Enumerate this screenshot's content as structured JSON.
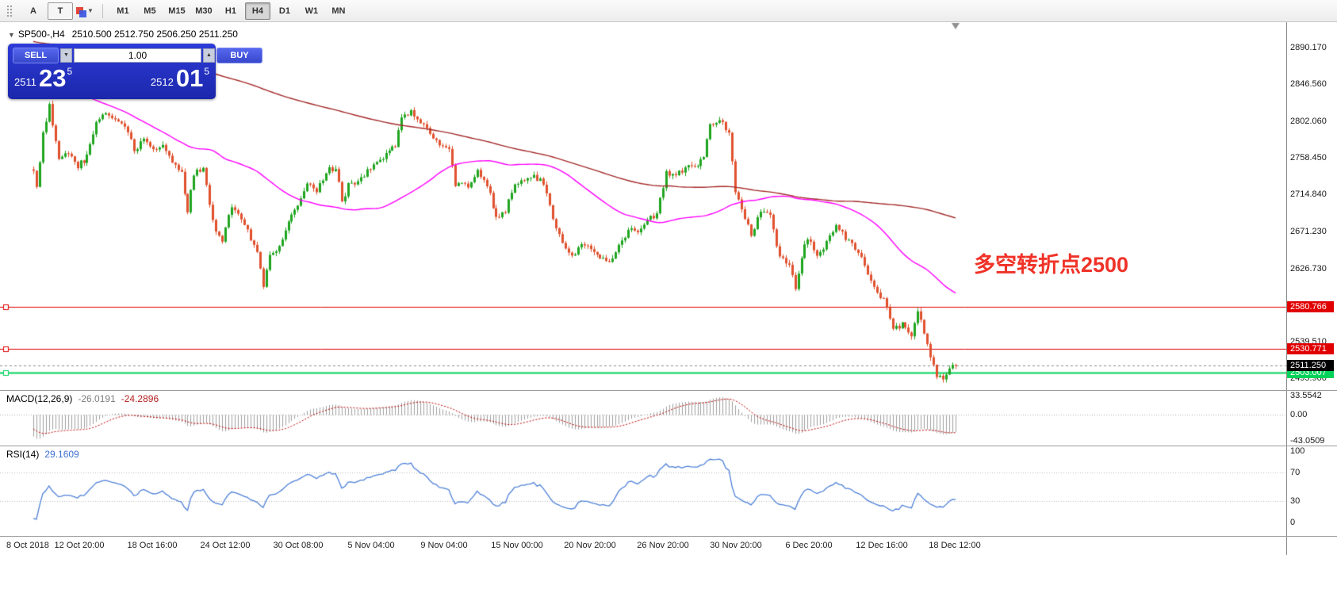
{
  "toolbar": {
    "tools": [
      {
        "name": "move-handle"
      },
      {
        "name": "arrow-tool",
        "glyph": "A"
      },
      {
        "name": "text-tool",
        "glyph": "T"
      },
      {
        "name": "shapes-tool"
      }
    ],
    "timeframes": [
      "M1",
      "M5",
      "M15",
      "M30",
      "H1",
      "H4",
      "D1",
      "W1",
      "MN"
    ],
    "active_timeframe": "H4"
  },
  "chart": {
    "symbol_period": "SP500-,H4",
    "ohlc_text": "2510.500 2512.750 2506.250 2511.250",
    "annotation": "多空转折点2500",
    "annotation_color": "#F03228",
    "time_labels": [
      "8 Oct 2018",
      "12 Oct 20:00",
      "18 Oct 16:00",
      "24 Oct 12:00",
      "30 Oct 08:00",
      "5 Nov 04:00",
      "9 Nov 04:00",
      "15 Nov 00:00",
      "20 Nov 20:00",
      "26 Nov 20:00",
      "30 Nov 20:00",
      "6 Dec 20:00",
      "12 Dec 16:00",
      "18 Dec 12:00"
    ],
    "price_ticks": [
      2890.17,
      2846.56,
      2802.06,
      2758.45,
      2714.84,
      2671.23,
      2626.73,
      2539.51,
      2495.9
    ],
    "hlines": [
      {
        "price": 2580.766,
        "label": "2580.766",
        "color": "#E00000",
        "width": 1
      },
      {
        "price": 2530.771,
        "label": "2530.771",
        "color": "#E00000",
        "width": 1
      },
      {
        "price": 2503.007,
        "label": "2503.007",
        "color": "#00D25A",
        "width": 2
      }
    ],
    "current_price": {
      "value": 2511.25,
      "label": "2511.250",
      "tag_bg": "#000000"
    }
  },
  "trade_panel": {
    "sell_label": "SELL",
    "buy_label": "BUY",
    "volume": "1.00",
    "bid": {
      "prefix": "2511",
      "big": "23",
      "sup": "5"
    },
    "ask": {
      "prefix": "2512",
      "big": "01",
      "sup": "5"
    }
  },
  "macd": {
    "name": "MACD(12,26,9)",
    "value_main": "-26.0191",
    "value_signal": "-24.2896",
    "scale_labels": [
      "33.5542",
      "0.00",
      "-43.0509"
    ],
    "scale_values": [
      33.5542,
      0,
      -43.0509
    ],
    "ylim": [
      -48,
      38
    ],
    "histogram_color": "#a0a0a0",
    "signal_color": "#c00000"
  },
  "rsi": {
    "name": "RSI(14)",
    "value": "29.1609",
    "scale_labels": [
      "100",
      "70",
      "30",
      "0"
    ],
    "scale_values": [
      100,
      70,
      30,
      0
    ],
    "levels": [
      70,
      30
    ],
    "line_color": "#4f81d8",
    "period": 14
  },
  "chart_data": {
    "type": "candlestick",
    "symbol": "SP500-",
    "timeframe": "H4",
    "last_ohlc": {
      "open": 2510.5,
      "high": 2512.75,
      "low": 2506.25,
      "close": 2511.25
    },
    "last_close": 2511.25,
    "visible_bars": 294,
    "history_bars": 200,
    "price_range": {
      "max": 2920,
      "min": 2482
    },
    "plot": {
      "x_start": 42,
      "x_end": 1205
    },
    "ma_fast_period": 55,
    "ma_slow_period": 200,
    "ma_fast_color": "#FF00FF",
    "ma_slow_color": "#A52A2A",
    "up_color": "#1FA51F",
    "down_color": "#E0512E",
    "macd_params": {
      "fast": 12,
      "slow": 26,
      "signal": 9
    },
    "history_anchors": [
      [
        -200,
        2896
      ],
      [
        -170,
        2906
      ],
      [
        -150,
        2890
      ],
      [
        -120,
        2912
      ],
      [
        -95,
        2928
      ],
      [
        -70,
        2906
      ],
      [
        -45,
        2892
      ],
      [
        -25,
        2886
      ],
      [
        -16,
        2882
      ],
      [
        -10,
        2872
      ],
      [
        -6,
        2812
      ],
      [
        -3,
        2786
      ],
      [
        -1,
        2748
      ]
    ],
    "anchors": [
      [
        0,
        2745
      ],
      [
        1,
        2722
      ],
      [
        3,
        2788
      ],
      [
        5,
        2820
      ],
      [
        8,
        2756
      ],
      [
        11,
        2766
      ],
      [
        14,
        2748
      ],
      [
        17,
        2760
      ],
      [
        20,
        2798
      ],
      [
        23,
        2812
      ],
      [
        26,
        2806
      ],
      [
        29,
        2798
      ],
      [
        32,
        2768
      ],
      [
        35,
        2780
      ],
      [
        38,
        2766
      ],
      [
        41,
        2772
      ],
      [
        44,
        2756
      ],
      [
        47,
        2742
      ],
      [
        49,
        2694
      ],
      [
        51,
        2740
      ],
      [
        54,
        2744
      ],
      [
        57,
        2682
      ],
      [
        60,
        2658
      ],
      [
        63,
        2702
      ],
      [
        66,
        2688
      ],
      [
        69,
        2662
      ],
      [
        71,
        2648
      ],
      [
        73,
        2606
      ],
      [
        75,
        2642
      ],
      [
        78,
        2650
      ],
      [
        81,
        2682
      ],
      [
        84,
        2702
      ],
      [
        87,
        2728
      ],
      [
        90,
        2718
      ],
      [
        93,
        2742
      ],
      [
        96,
        2748
      ],
      [
        98,
        2706
      ],
      [
        100,
        2726
      ],
      [
        103,
        2732
      ],
      [
        106,
        2742
      ],
      [
        109,
        2752
      ],
      [
        112,
        2762
      ],
      [
        115,
        2772
      ],
      [
        117,
        2808
      ],
      [
        120,
        2812
      ],
      [
        123,
        2800
      ],
      [
        126,
        2788
      ],
      [
        129,
        2774
      ],
      [
        132,
        2768
      ],
      [
        134,
        2728
      ],
      [
        138,
        2724
      ],
      [
        141,
        2744
      ],
      [
        144,
        2728
      ],
      [
        147,
        2688
      ],
      [
        150,
        2696
      ],
      [
        153,
        2728
      ],
      [
        156,
        2732
      ],
      [
        159,
        2736
      ],
      [
        162,
        2728
      ],
      [
        165,
        2688
      ],
      [
        168,
        2654
      ],
      [
        171,
        2640
      ],
      [
        174,
        2656
      ],
      [
        177,
        2650
      ],
      [
        180,
        2642
      ],
      [
        183,
        2634
      ],
      [
        186,
        2656
      ],
      [
        189,
        2672
      ],
      [
        192,
        2670
      ],
      [
        195,
        2684
      ],
      [
        198,
        2692
      ],
      [
        201,
        2740
      ],
      [
        204,
        2738
      ],
      [
        207,
        2746
      ],
      [
        210,
        2748
      ],
      [
        213,
        2760
      ],
      [
        215,
        2798
      ],
      [
        218,
        2806
      ],
      [
        221,
        2788
      ],
      [
        223,
        2718
      ],
      [
        225,
        2700
      ],
      [
        228,
        2664
      ],
      [
        231,
        2696
      ],
      [
        234,
        2690
      ],
      [
        236,
        2652
      ],
      [
        238,
        2636
      ],
      [
        240,
        2630
      ],
      [
        242,
        2602
      ],
      [
        244,
        2642
      ],
      [
        246,
        2664
      ],
      [
        249,
        2640
      ],
      [
        252,
        2656
      ],
      [
        255,
        2682
      ],
      [
        258,
        2662
      ],
      [
        261,
        2652
      ],
      [
        264,
        2632
      ],
      [
        267,
        2602
      ],
      [
        270,
        2590
      ],
      [
        273,
        2552
      ],
      [
        276,
        2562
      ],
      [
        279,
        2546
      ],
      [
        281,
        2576
      ],
      [
        283,
        2552
      ],
      [
        285,
        2524
      ],
      [
        287,
        2500
      ],
      [
        289,
        2496
      ],
      [
        291,
        2509
      ],
      [
        293,
        2511.25
      ]
    ]
  }
}
